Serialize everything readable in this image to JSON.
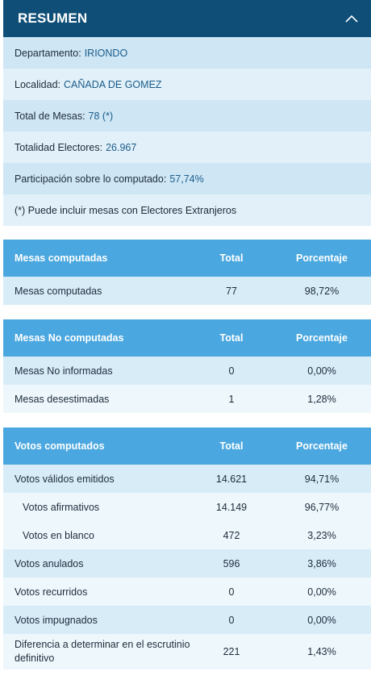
{
  "summary": {
    "title": "RESUMEN",
    "toggle_icon": "chevron-up-icon",
    "rows": [
      {
        "label": "Departamento:",
        "value": "IRIONDO"
      },
      {
        "label": "Localidad:",
        "value": "CAÑADA DE GOMEZ"
      },
      {
        "label": "Total de Mesas:",
        "value": "78 (*)"
      },
      {
        "label": "Totalidad Electores:",
        "value": "26.967"
      },
      {
        "label": "Participación sobre lo computado:",
        "value": "57,74%"
      },
      {
        "label": "(*) Puede incluir mesas con Electores Extranjeros",
        "value": ""
      }
    ]
  },
  "mesas_computadas": {
    "headers": [
      "Mesas computadas",
      "Total",
      "Porcentaje"
    ],
    "rows": [
      {
        "label": "Mesas computadas",
        "total": "77",
        "pct": "98,72%"
      }
    ]
  },
  "mesas_no_computadas": {
    "headers": [
      "Mesas No computadas",
      "Total",
      "Porcentaje"
    ],
    "rows": [
      {
        "label": "Mesas No informadas",
        "total": "0",
        "pct": "0,00%"
      },
      {
        "label": "Mesas desestimadas",
        "total": "1",
        "pct": "1,28%"
      }
    ]
  },
  "votos": {
    "headers": [
      "Votos computados",
      "Total",
      "Porcentaje"
    ],
    "rows": [
      {
        "label": "Votos válidos emitidos",
        "total": "14.621",
        "pct": "94,71%"
      },
      {
        "label": "Votos afirmativos",
        "total": "14.149",
        "pct": "96,77%"
      },
      {
        "label": "Votos en blanco",
        "total": "472",
        "pct": "3,23%"
      },
      {
        "label": "Votos anulados",
        "total": "596",
        "pct": "3,86%"
      },
      {
        "label": "Votos recurridos",
        "total": "0",
        "pct": "0,00%"
      },
      {
        "label": "Votos impugnados",
        "total": "0",
        "pct": "0,00%"
      },
      {
        "label": "Diferencia a determinar en el escrutinio definitivo",
        "total": "221",
        "pct": "1,43%"
      }
    ]
  },
  "colors": {
    "header_dark": "#0f4f77",
    "table_header": "#4aa7df",
    "row_alt": "#cfe6f5",
    "row_light": "#e2f0f9",
    "value_text": "#1b5d8a"
  }
}
